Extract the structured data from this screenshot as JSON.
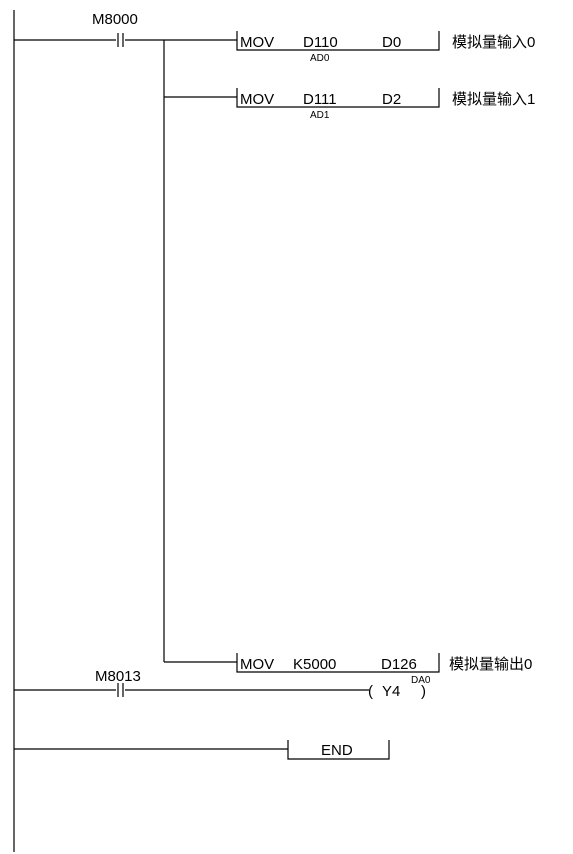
{
  "rungs": [
    {
      "contact": "M8000",
      "instructions": [
        {
          "op": "MOV",
          "src": "D110",
          "dst": "D0",
          "note": "AD0",
          "comment": "模拟量输入0"
        },
        {
          "op": "MOV",
          "src": "D111",
          "dst": "D2",
          "note": "AD1",
          "comment": "模拟量输入1"
        },
        {
          "op": "MOV",
          "src": "K5000",
          "dst": "D126",
          "note": "DA0",
          "comment": "模拟量输出0"
        }
      ]
    },
    {
      "contact": "M8013",
      "coil": "Y4"
    },
    {
      "end": "END"
    }
  ]
}
